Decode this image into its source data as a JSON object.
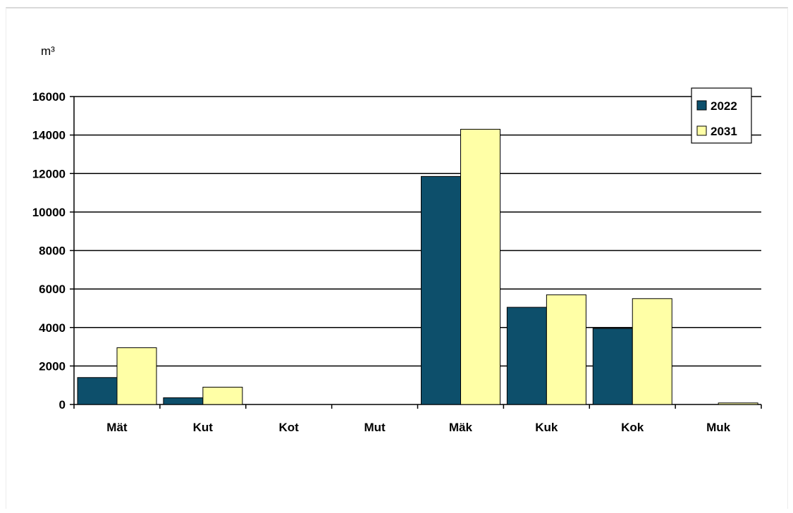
{
  "chart_data": {
    "type": "bar",
    "ylabel": "m³",
    "categories": [
      "Mät",
      "Kut",
      "Kot",
      "Mut",
      "Mäk",
      "Kuk",
      "Kok",
      "Muk"
    ],
    "series": [
      {
        "name": "2022",
        "color": "#0d4f6b",
        "values": [
          1400,
          350,
          0,
          0,
          11850,
          5050,
          3950,
          0
        ]
      },
      {
        "name": "2031",
        "color": "#ffffa6",
        "values": [
          2950,
          900,
          0,
          0,
          14300,
          5700,
          5500,
          80
        ]
      }
    ],
    "ylim": [
      0,
      16000
    ],
    "yticks": [
      "0",
      "2000",
      "4000",
      "6000",
      "8000",
      "10000",
      "12000",
      "14000",
      "16000"
    ],
    "grid": true,
    "legend_position": "top-right"
  }
}
